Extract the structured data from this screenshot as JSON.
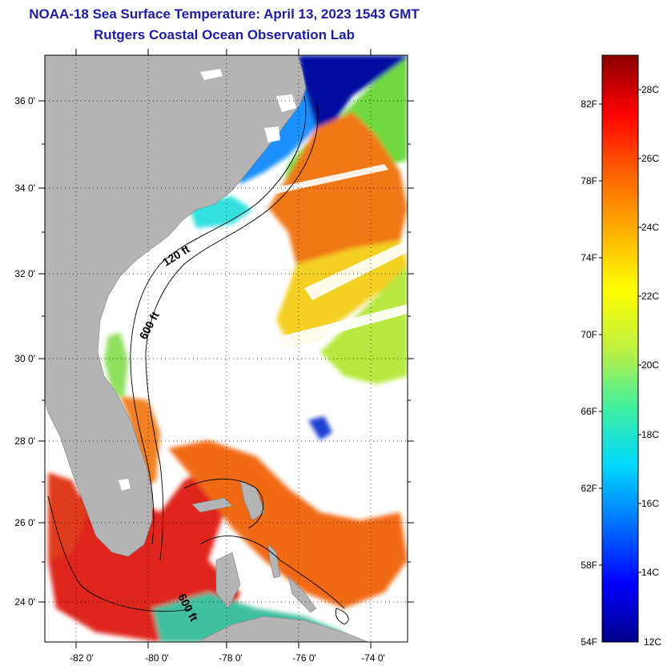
{
  "title_line1": "NOAA-18 Sea Surface Temperature:  April 13, 2023 1543 GMT",
  "title_line2": "Rutgers Coastal Ocean Observation Lab",
  "map": {
    "lat_labels": [
      "36 0'",
      "34 0'",
      "32 0'",
      "30 0'",
      "28 0'",
      "26 0'",
      "24 0'"
    ],
    "lon_labels": [
      "-82 0'",
      "-80 0'",
      "-78 0'",
      "-76 0'",
      "-74 0'"
    ],
    "contour_labels": [
      "120 ft",
      "600 ft",
      "600 ft"
    ],
    "colors": {
      "land": "#b4b4b4",
      "cloud": "#ffffff",
      "warm_core": "#e0281c",
      "gulf_stream": "#f07818",
      "shelf_green": "#70d840",
      "cold_north": "#0010a0"
    }
  },
  "colorbar": {
    "fahrenheit_labels": [
      "82F",
      "78F",
      "74F",
      "70F",
      "66F",
      "62F",
      "58F",
      "54F"
    ],
    "celsius_labels": [
      "28C",
      "26C",
      "24C",
      "22C",
      "20C",
      "18C",
      "16C",
      "14C",
      "12C"
    ],
    "range_c": [
      12,
      29.5
    ],
    "gradient_stops": [
      "#00008c",
      "#0000ff",
      "#0070ff",
      "#00d8ff",
      "#40f0a0",
      "#c0f040",
      "#ffff00",
      "#ffb000",
      "#ff6000",
      "#ff0000",
      "#8c0000"
    ]
  }
}
